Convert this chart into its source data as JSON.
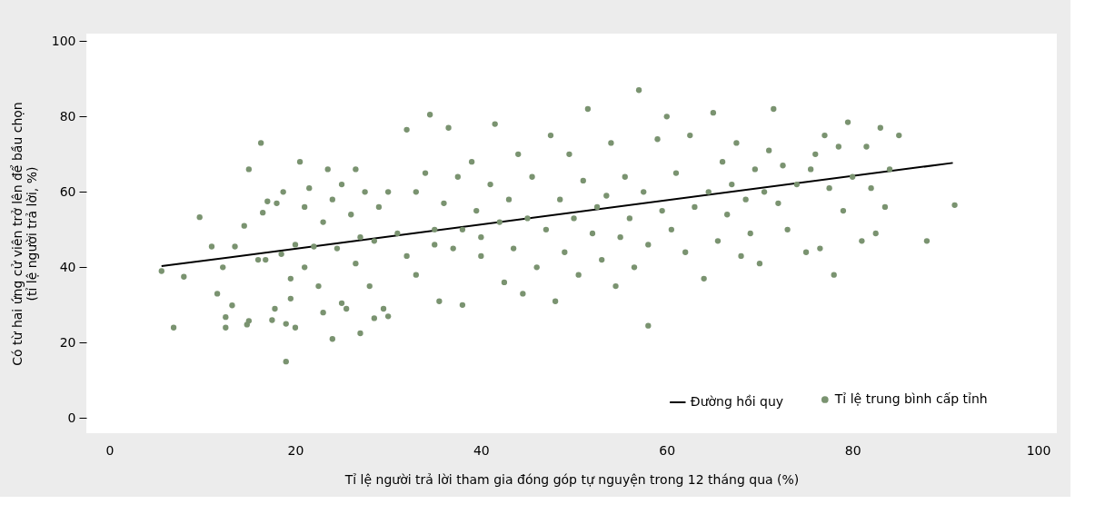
{
  "chart_data": {
    "type": "scatter",
    "xlabel": "Tỉ lệ người trả lời tham gia đóng góp tự nguyện trong 12 tháng qua (%)",
    "ylabel": "Có từ hai ứng cử viên trở lên để bầu chọn\n(tỉ lệ người trả lời, %)",
    "xlim": [
      -2.5,
      102
    ],
    "ylim": [
      -4,
      102
    ],
    "xticks": [
      0,
      20,
      40,
      60,
      80,
      100
    ],
    "yticks": [
      0,
      20,
      40,
      60,
      80,
      100
    ],
    "grid": false,
    "legend": "bottom right",
    "marker": "circle",
    "series": [
      {
        "name": "Đường hồi quy",
        "type": "line",
        "marker": "none",
        "color": "#000000",
        "x": [
          5.6,
          90.8
        ],
        "values": [
          40.3,
          67.7
        ]
      },
      {
        "name": "Tỉ lệ trung bình cấp tỉnh",
        "color": "#7a9370",
        "x": [
          5.6,
          6.9,
          8,
          9.7,
          11,
          11.6,
          12.2,
          12.5,
          12.5,
          13.2,
          13.5,
          14.5,
          14.8,
          15,
          15,
          16,
          16.3,
          16.5,
          16.8,
          17,
          17.5,
          17.8,
          18,
          18.5,
          18.7,
          19,
          19,
          19.5,
          19.5,
          20,
          20,
          20.5,
          21,
          21,
          21.5,
          22,
          22.5,
          23,
          23,
          23.5,
          24,
          24,
          24.5,
          25,
          25,
          25.5,
          26,
          26.5,
          26.5,
          27,
          27,
          27.5,
          28,
          28.5,
          28.5,
          29,
          29.5,
          30,
          30,
          31,
          32,
          32,
          33,
          33,
          34,
          34.5,
          35,
          35,
          35.5,
          36,
          36.5,
          37,
          37.5,
          38,
          38,
          39,
          39.5,
          40,
          40,
          41,
          41.5,
          42,
          42.5,
          43,
          43.5,
          44,
          44.5,
          45,
          45.5,
          46,
          47,
          47.5,
          48,
          48.5,
          49,
          49.5,
          50,
          50.5,
          51,
          51.5,
          52,
          52.5,
          53,
          53.5,
          54,
          54.5,
          55,
          55.5,
          56,
          56.5,
          57,
          57.5,
          58,
          58,
          59,
          59.5,
          60,
          60.5,
          61,
          62,
          62.5,
          63,
          64,
          64.5,
          65,
          65.5,
          66,
          66.5,
          67,
          67.5,
          68,
          68.5,
          69,
          69.5,
          70,
          70.5,
          71,
          71.5,
          72,
          72.5,
          73,
          74,
          75,
          75.5,
          76,
          76.5,
          77,
          77.5,
          78,
          78.5,
          79,
          79.5,
          80,
          81,
          81.5,
          82,
          82.5,
          83,
          83.5,
          84,
          85,
          88,
          91
        ],
        "values": [
          39,
          24,
          37.5,
          53.3,
          45.5,
          33,
          40,
          26.8,
          24,
          29.9,
          45.5,
          51,
          24.8,
          66,
          25.8,
          42,
          73,
          54.5,
          42,
          57.5,
          26,
          29,
          57,
          43.5,
          60,
          15,
          25,
          37,
          31.7,
          46,
          24,
          68,
          56,
          40,
          61,
          45.5,
          35,
          52,
          28,
          66,
          21,
          58,
          45,
          62,
          30.5,
          29,
          54,
          66,
          41,
          22.5,
          48,
          60,
          35,
          47,
          26.5,
          56,
          29,
          27,
          60,
          49,
          76.5,
          43,
          60,
          38,
          65,
          80.5,
          50,
          46,
          31,
          57,
          77,
          45,
          64,
          30,
          50,
          68,
          55,
          48,
          43,
          62,
          78,
          52,
          36,
          58,
          45,
          70,
          33,
          53,
          64,
          40,
          50,
          75,
          31,
          58,
          44,
          70,
          53,
          38,
          63,
          82,
          49,
          56,
          42,
          59,
          73,
          35,
          48,
          64,
          53,
          40,
          87,
          60,
          24.5,
          46,
          74,
          55,
          80,
          50,
          65,
          44,
          75,
          56,
          37,
          60,
          81,
          47,
          68,
          54,
          62,
          73,
          43,
          58,
          49,
          66,
          41,
          60,
          71,
          82,
          57,
          67,
          50,
          62,
          44,
          66,
          70,
          45,
          75,
          61,
          38,
          72,
          55,
          78.5,
          64,
          47,
          72,
          61,
          49,
          77,
          56,
          66,
          75,
          47,
          56.5
        ]
      }
    ]
  }
}
